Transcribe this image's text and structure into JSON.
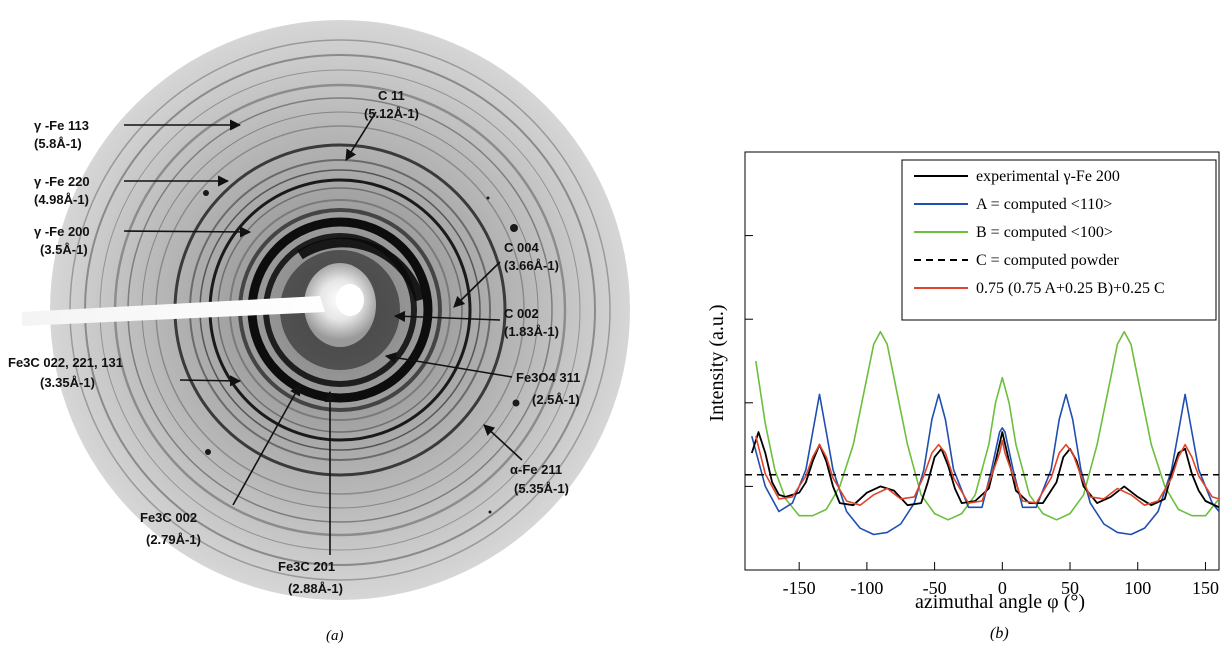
{
  "panel_a": {
    "caption": "(a)",
    "labels": [
      {
        "id": "c11",
        "line1": "C 11",
        "line2": "(5.12Å-1)"
      },
      {
        "id": "gfe113",
        "line1": "γ -Fe 113",
        "line2": "(5.8Å-1)"
      },
      {
        "id": "gfe220",
        "line1": "γ -Fe 220",
        "line2": "(4.98Å-1)"
      },
      {
        "id": "gfe200",
        "line1": "γ -Fe 200",
        "line2": "(3.5Å-1)"
      },
      {
        "id": "c004",
        "line1": "C 004",
        "line2": "(3.66Å-1)"
      },
      {
        "id": "c002",
        "line1": "C 002",
        "line2": "(1.83Å-1)"
      },
      {
        "id": "fe3c022",
        "line1": "Fe3C 022, 221, 131",
        "line2": "(3.35Å-1)"
      },
      {
        "id": "fe3o4",
        "line1": "Fe3O4 311",
        "line2": "(2.5Å-1)"
      },
      {
        "id": "afe211",
        "line1": "α-Fe 211",
        "line2": "(5.35Å-1)"
      },
      {
        "id": "fe3c002",
        "line1": "Fe3C 002",
        "line2": "(2.79Å-1)"
      },
      {
        "id": "fe3c201",
        "line1": "Fe3C 201",
        "line2": "(2.88Å-1)"
      }
    ]
  },
  "chart_data": {
    "type": "line",
    "caption": "(b)",
    "xlabel": "azimuthal angle φ (°)",
    "ylabel": "Intensity (a.u.)",
    "xlim": [
      -190,
      160
    ],
    "ylim": [
      0,
      10
    ],
    "xticks": [
      -150,
      -100,
      -50,
      0,
      50,
      100,
      150
    ],
    "x_tick_labels": [
      "-150",
      "-100",
      "-50",
      "0",
      "50",
      "100",
      "150"
    ],
    "legend_position": "top-right",
    "series": [
      {
        "name": "experimental γ-Fe 200",
        "color": "#000000",
        "dash": "solid",
        "x": [
          -185,
          -180,
          -175,
          -170,
          -165,
          -160,
          -150,
          -145,
          -140,
          -135,
          -130,
          -125,
          -120,
          -110,
          -100,
          -90,
          -80,
          -70,
          -60,
          -55,
          -50,
          -45,
          -40,
          -35,
          -30,
          -20,
          -10,
          -5,
          0,
          5,
          10,
          20,
          30,
          40,
          45,
          50,
          55,
          60,
          70,
          80,
          90,
          100,
          110,
          120,
          125,
          130,
          135,
          140,
          145,
          150,
          160
        ],
        "y": [
          2.8,
          3.3,
          2.8,
          2.1,
          1.8,
          1.75,
          1.85,
          2.1,
          2.6,
          3.0,
          2.6,
          2.0,
          1.6,
          1.55,
          1.85,
          2.0,
          1.9,
          1.55,
          1.6,
          2.1,
          2.7,
          2.9,
          2.5,
          1.95,
          1.6,
          1.65,
          1.95,
          2.6,
          3.3,
          2.6,
          1.9,
          1.6,
          1.6,
          2.1,
          2.7,
          2.9,
          2.6,
          2.0,
          1.6,
          1.75,
          2.0,
          1.75,
          1.55,
          1.7,
          2.3,
          2.8,
          2.9,
          2.3,
          1.9,
          1.65,
          1.5
        ]
      },
      {
        "name": "A = computed <110>",
        "color": "#1f4fb0",
        "dash": "solid",
        "x": [
          -185,
          -175,
          -165,
          -155,
          -145,
          -140,
          -135,
          -130,
          -125,
          -115,
          -105,
          -95,
          -85,
          -75,
          -65,
          -58,
          -52,
          -47,
          -42,
          -36,
          -25,
          -15,
          -8,
          -2,
          0,
          2,
          8,
          15,
          25,
          36,
          42,
          47,
          52,
          58,
          65,
          75,
          85,
          95,
          105,
          115,
          125,
          130,
          135,
          140,
          145,
          155,
          160
        ],
        "y": [
          3.2,
          2.0,
          1.4,
          1.6,
          2.4,
          3.3,
          4.2,
          3.3,
          2.4,
          1.4,
          1.0,
          0.85,
          0.9,
          1.1,
          1.6,
          2.4,
          3.6,
          4.2,
          3.6,
          2.4,
          1.5,
          1.5,
          2.4,
          3.3,
          3.4,
          3.3,
          2.4,
          1.5,
          1.5,
          2.4,
          3.6,
          4.2,
          3.6,
          2.4,
          1.6,
          1.1,
          0.9,
          0.85,
          1.0,
          1.4,
          2.4,
          3.3,
          4.2,
          3.3,
          2.4,
          1.6,
          1.4
        ]
      },
      {
        "name": "B = computed <100>",
        "color": "#6cbf3c",
        "dash": "solid",
        "x": [
          -182,
          -175,
          -168,
          -160,
          -150,
          -140,
          -130,
          -120,
          -110,
          -100,
          -95,
          -90,
          -85,
          -80,
          -70,
          -60,
          -50,
          -40,
          -30,
          -20,
          -10,
          -5,
          0,
          5,
          10,
          20,
          30,
          40,
          50,
          60,
          70,
          80,
          85,
          90,
          95,
          100,
          110,
          120,
          130,
          140,
          150,
          160
        ],
        "y": [
          5.0,
          3.5,
          2.4,
          1.7,
          1.3,
          1.3,
          1.45,
          2.0,
          3.0,
          4.6,
          5.4,
          5.7,
          5.4,
          4.6,
          3.0,
          1.8,
          1.35,
          1.2,
          1.35,
          1.8,
          3.0,
          4.0,
          4.6,
          4.0,
          3.0,
          1.8,
          1.35,
          1.2,
          1.35,
          1.8,
          3.0,
          4.6,
          5.4,
          5.7,
          5.4,
          4.6,
          3.0,
          2.0,
          1.45,
          1.3,
          1.3,
          1.7
        ]
      },
      {
        "name": "C = computed powder",
        "color": "#000000",
        "dash": "dashed",
        "x": [
          -190,
          160
        ],
        "y": [
          2.28,
          2.28
        ]
      },
      {
        "name": "0.75 (0.75 A+0.25 B)+0.25 C",
        "color": "#e0452b",
        "dash": "solid",
        "x": [
          -182,
          -175,
          -165,
          -155,
          -145,
          -140,
          -135,
          -130,
          -125,
          -115,
          -105,
          -95,
          -85,
          -75,
          -65,
          -58,
          -52,
          -47,
          -42,
          -36,
          -25,
          -15,
          -8,
          -2,
          0,
          2,
          8,
          15,
          25,
          36,
          42,
          47,
          52,
          58,
          65,
          75,
          85,
          95,
          105,
          115,
          125,
          130,
          135,
          140,
          145,
          155,
          160
        ],
        "y": [
          3.2,
          2.3,
          1.7,
          1.75,
          2.25,
          2.7,
          3.0,
          2.7,
          2.2,
          1.65,
          1.55,
          1.8,
          1.95,
          1.7,
          1.75,
          2.25,
          2.8,
          3.0,
          2.8,
          2.2,
          1.6,
          1.65,
          2.25,
          2.8,
          3.1,
          2.8,
          2.25,
          1.65,
          1.6,
          2.2,
          2.8,
          3.0,
          2.8,
          2.25,
          1.75,
          1.7,
          1.95,
          1.8,
          1.55,
          1.65,
          2.2,
          2.7,
          3.0,
          2.7,
          2.25,
          1.75,
          1.7
        ]
      }
    ]
  }
}
